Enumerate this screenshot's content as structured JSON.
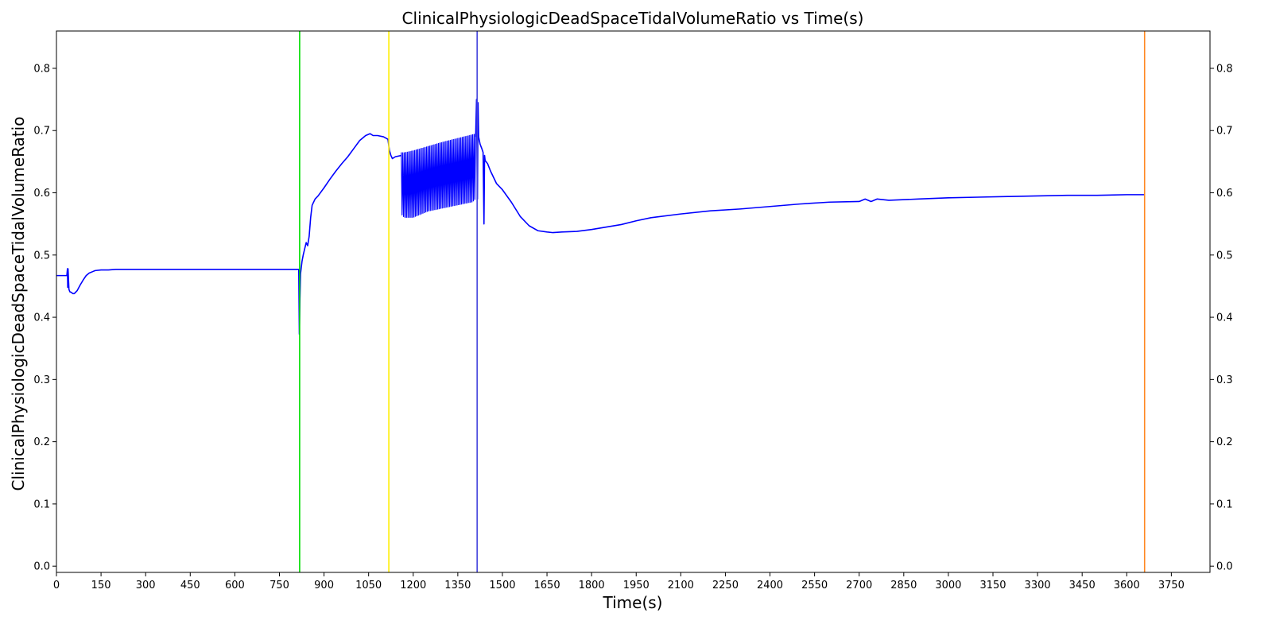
{
  "chart_data": {
    "type": "line",
    "title": "ClinicalPhysiologicDeadSpaceTidalVolumeRatio vs Time(s)",
    "xlabel": "Time(s)",
    "ylabel": "ClinicalPhysiologicDeadSpaceTidalVolumeRatio",
    "xlim": [
      0,
      3880
    ],
    "ylim": [
      -0.01,
      0.86
    ],
    "xticks": [
      0,
      150,
      300,
      450,
      600,
      750,
      900,
      1050,
      1200,
      1350,
      1500,
      1650,
      1800,
      1950,
      2100,
      2250,
      2400,
      2550,
      2700,
      2850,
      3000,
      3150,
      3300,
      3450,
      3600,
      3750
    ],
    "yticks": [
      0.0,
      0.1,
      0.2,
      0.3,
      0.4,
      0.5,
      0.6,
      0.7,
      0.8
    ],
    "ytick_labels": [
      "0.0",
      "0.1",
      "0.2",
      "0.3",
      "0.4",
      "0.5",
      "0.6",
      "0.7",
      "0.8"
    ],
    "right_axis_mirrored": true,
    "grid": false,
    "series": [
      {
        "color": "#0000ff",
        "x": [
          0,
          35,
          37,
          38,
          39,
          42,
          45,
          50,
          55,
          60,
          70,
          80,
          90,
          100,
          110,
          120,
          130,
          150,
          175,
          200,
          250,
          400,
          600,
          750,
          815,
          817,
          819,
          820,
          821,
          823,
          826,
          830,
          835,
          840,
          845,
          850,
          855,
          860,
          870,
          880,
          900,
          920,
          940,
          960,
          980,
          1000,
          1020,
          1040,
          1055,
          1065,
          1080,
          1100,
          1115,
          1120,
          1125,
          1130,
          1140,
          1160
        ],
        "y": [
          0.467,
          0.467,
          0.478,
          0.448,
          0.478,
          0.445,
          0.441,
          0.44,
          0.438,
          0.438,
          0.443,
          0.452,
          0.46,
          0.467,
          0.471,
          0.473,
          0.475,
          0.476,
          0.476,
          0.477,
          0.477,
          0.477,
          0.477,
          0.477,
          0.477,
          0.373,
          0.43,
          0.45,
          0.47,
          0.478,
          0.49,
          0.5,
          0.51,
          0.52,
          0.515,
          0.53,
          0.56,
          0.58,
          0.59,
          0.595,
          0.608,
          0.622,
          0.635,
          0.647,
          0.658,
          0.671,
          0.684,
          0.692,
          0.695,
          0.692,
          0.692,
          0.69,
          0.686,
          0.668,
          0.66,
          0.655,
          0.658,
          0.66
        ]
      },
      {
        "color": "#0000ff",
        "x": [
          1160,
          1170,
          1200,
          1250,
          1300,
          1350,
          1400,
          1410
        ],
        "y_upper": [
          0.665,
          0.665,
          0.668,
          0.675,
          0.682,
          0.688,
          0.694,
          0.695
        ],
        "y_lower": [
          0.565,
          0.56,
          0.56,
          0.57,
          0.575,
          0.58,
          0.585,
          0.59
        ],
        "style": "oscillation-band"
      },
      {
        "color": "#0000ff",
        "x": [
          1410,
          1413,
          1416,
          1418,
          1420,
          1425,
          1430,
          1435,
          1438,
          1440,
          1442,
          1445,
          1450,
          1460,
          1480,
          1500,
          1530,
          1560,
          1590,
          1620,
          1650,
          1670,
          1700,
          1750,
          1800,
          1850,
          1900,
          1950,
          2000,
          2100,
          2200,
          2300,
          2400,
          2500,
          2600,
          2700,
          2720,
          2740,
          2760,
          2800,
          2900,
          3000,
          3100,
          3200,
          3300,
          3400,
          3500,
          3600,
          3660
        ],
        "y": [
          0.69,
          0.75,
          0.59,
          0.745,
          0.69,
          0.678,
          0.672,
          0.665,
          0.55,
          0.66,
          0.652,
          0.65,
          0.647,
          0.635,
          0.615,
          0.605,
          0.585,
          0.562,
          0.547,
          0.539,
          0.537,
          0.536,
          0.537,
          0.538,
          0.541,
          0.545,
          0.549,
          0.555,
          0.56,
          0.566,
          0.571,
          0.574,
          0.578,
          0.582,
          0.585,
          0.586,
          0.59,
          0.586,
          0.59,
          0.588,
          0.59,
          0.592,
          0.593,
          0.594,
          0.595,
          0.596,
          0.596,
          0.597,
          0.597
        ]
      }
    ],
    "vlines": [
      {
        "x": 818,
        "color": "#00dd00"
      },
      {
        "x": 1118,
        "color": "#ffee00"
      },
      {
        "x": 1415,
        "color": "#4444dd"
      },
      {
        "x": 3660,
        "color": "#ff8822"
      }
    ]
  }
}
